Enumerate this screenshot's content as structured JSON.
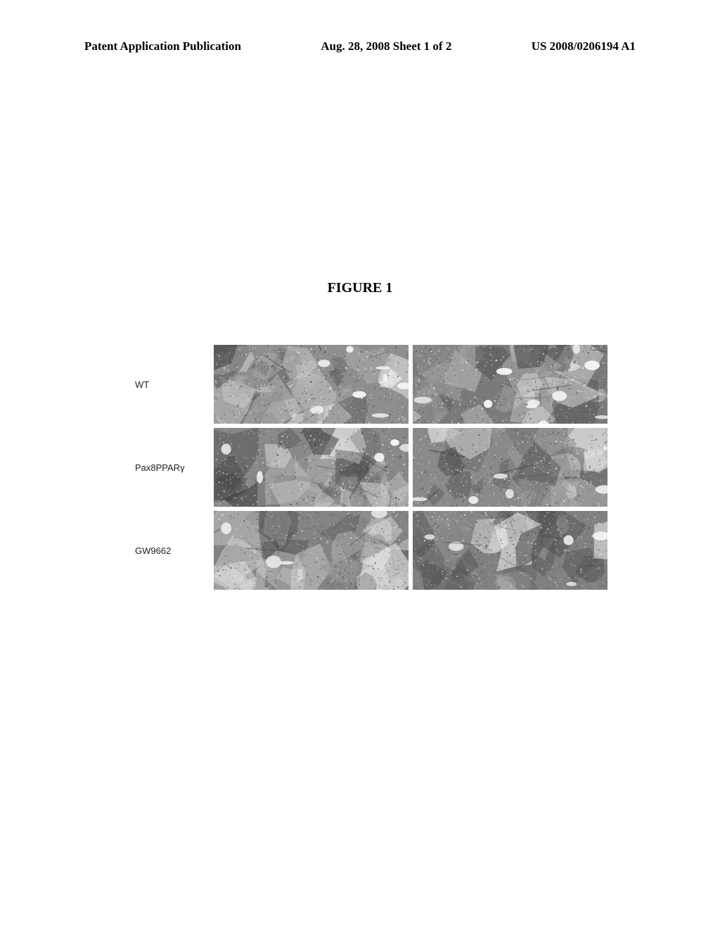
{
  "header": {
    "left": "Patent Application Publication",
    "center": "Aug. 28, 2008  Sheet 1 of 2",
    "right": "US 2008/0206194 A1"
  },
  "figure": {
    "title": "FIGURE 1",
    "rows": [
      {
        "label": "WT",
        "panels": [
          {
            "name": "wt-left",
            "bg": "#8e8e8e",
            "noise_colors": [
              "#5a5a5a",
              "#c9c9c9",
              "#ffffff",
              "#3f3f3f",
              "#b0b0b0"
            ],
            "light_blobs": 8,
            "pattern_seed": 11
          },
          {
            "name": "wt-right",
            "bg": "#7a7a7a",
            "noise_colors": [
              "#4a4a4a",
              "#d8d8d8",
              "#ffffff",
              "#585858",
              "#a5a5a5"
            ],
            "light_blobs": 10,
            "pattern_seed": 23
          }
        ]
      },
      {
        "label": "Pax8PPARγ",
        "panels": [
          {
            "name": "pax8-left",
            "bg": "#888888",
            "noise_colors": [
              "#3e3e3e",
              "#cfcfcf",
              "#efefef",
              "#5e5e5e",
              "#9c9c9c"
            ],
            "light_blobs": 5,
            "pattern_seed": 37
          },
          {
            "name": "pax8-right",
            "bg": "#8a8a8a",
            "noise_colors": [
              "#454545",
              "#d3d3d3",
              "#f1f1f1",
              "#606060",
              "#a0a0a0"
            ],
            "light_blobs": 6,
            "pattern_seed": 49
          }
        ]
      },
      {
        "label": "GW9662",
        "panels": [
          {
            "name": "gw-left",
            "bg": "#838383",
            "noise_colors": [
              "#4c4c4c",
              "#bfbfbf",
              "#e6e6e6",
              "#595959",
              "#989898"
            ],
            "light_blobs": 4,
            "pattern_seed": 61
          },
          {
            "name": "gw-right",
            "bg": "#808080",
            "noise_colors": [
              "#484848",
              "#c2c2c2",
              "#e9e9e9",
              "#555555",
              "#959595"
            ],
            "light_blobs": 5,
            "pattern_seed": 73
          }
        ]
      }
    ]
  }
}
